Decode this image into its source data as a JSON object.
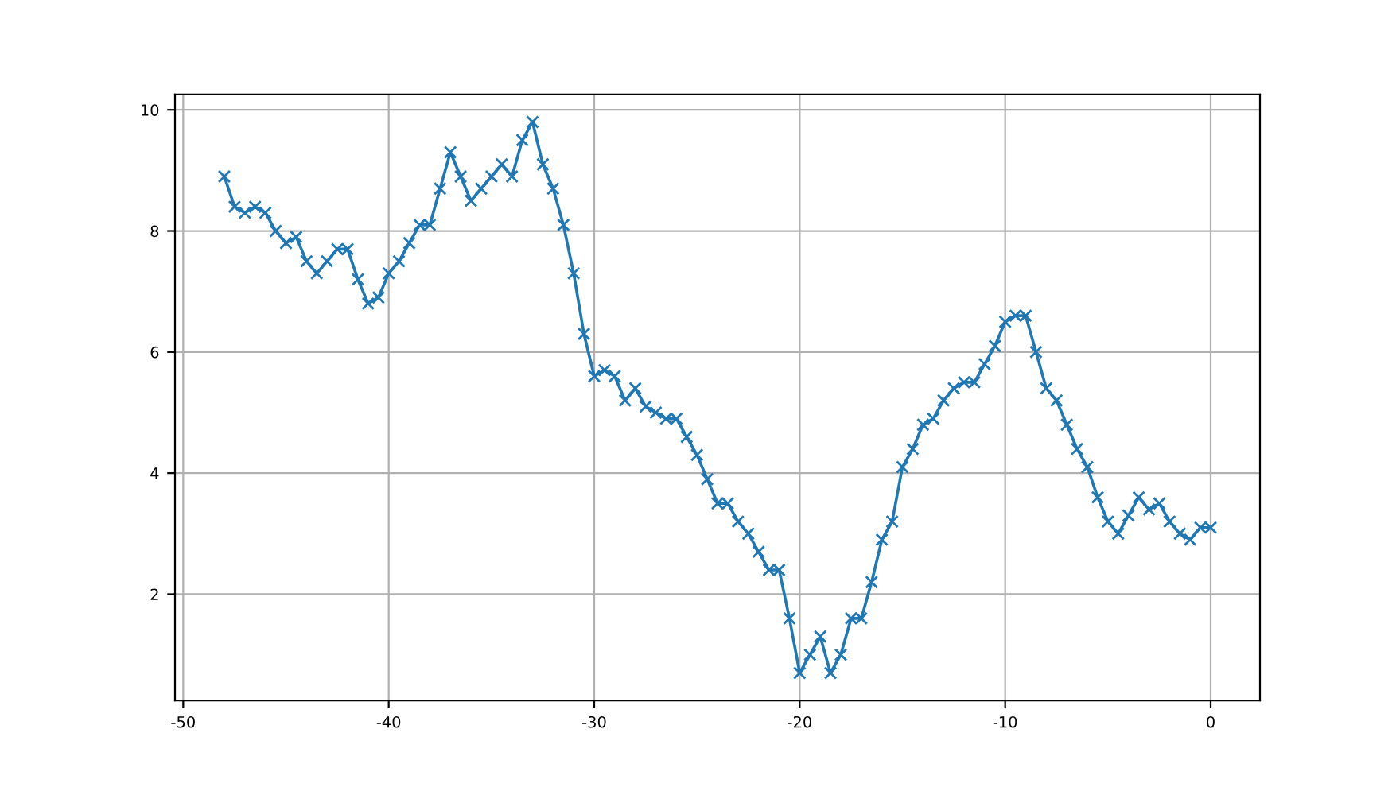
{
  "chart_data": {
    "type": "line",
    "marker": "cross",
    "line_style": "solid",
    "grid": true,
    "x": [
      -48,
      -47.5,
      -47,
      -46.5,
      -46,
      -45.5,
      -45,
      -44.5,
      -44,
      -43.5,
      -43,
      -42.5,
      -42,
      -41.5,
      -41,
      -40.5,
      -40,
      -39.5,
      -39,
      -38.5,
      -38,
      -37.5,
      -37,
      -36.5,
      -36,
      -35.5,
      -35,
      -34.5,
      -34,
      -33.5,
      -33,
      -32.5,
      -32,
      -31.5,
      -31,
      -30.5,
      -30,
      -29.5,
      -29,
      -28.5,
      -28,
      -27.5,
      -27,
      -26.5,
      -26,
      -25.5,
      -25,
      -24.5,
      -24,
      -23.5,
      -23,
      -22.5,
      -22,
      -21.5,
      -21,
      -20.5,
      -20,
      -19.5,
      -19,
      -18.5,
      -18,
      -17.5,
      -17,
      -16.5,
      -16,
      -15.5,
      -15,
      -14.5,
      -14,
      -13.5,
      -13,
      -12.5,
      -12,
      -11.5,
      -11,
      -10.5,
      -10,
      -9.5,
      -9,
      -8.5,
      -8,
      -7.5,
      -7,
      -6.5,
      -6,
      -5.5,
      -5,
      -4.5,
      -4,
      -3.5,
      -3,
      -2.5,
      -2,
      -1.5,
      -1,
      -0.5,
      0
    ],
    "series": [
      {
        "color": "#1f77b4",
        "values": [
          8.9,
          8.4,
          8.3,
          8.4,
          8.3,
          8.0,
          7.8,
          7.9,
          7.5,
          7.3,
          7.5,
          7.7,
          7.7,
          7.2,
          6.8,
          6.9,
          7.3,
          7.5,
          7.8,
          8.1,
          8.1,
          8.7,
          9.3,
          8.9,
          8.5,
          8.7,
          8.9,
          9.1,
          8.9,
          9.5,
          9.8,
          9.1,
          8.7,
          8.1,
          7.3,
          6.3,
          5.6,
          5.7,
          5.6,
          5.2,
          5.4,
          5.1,
          5.0,
          4.9,
          4.9,
          4.6,
          4.3,
          3.9,
          3.5,
          3.5,
          3.2,
          3.0,
          2.7,
          2.4,
          2.4,
          1.6,
          0.7,
          1.0,
          1.3,
          0.7,
          1.0,
          1.6,
          1.6,
          2.2,
          2.9,
          3.2,
          4.1,
          4.4,
          4.8,
          4.9,
          5.2,
          5.4,
          5.5,
          5.5,
          5.8,
          6.1,
          6.5,
          6.6,
          6.6,
          6.0,
          5.4,
          5.2,
          4.8,
          4.4,
          4.1,
          3.6,
          3.2,
          3.0,
          3.3,
          3.6,
          3.4,
          3.5,
          3.2,
          3.0,
          2.9,
          3.1,
          3.1
        ]
      }
    ],
    "xlim": [
      -50.4,
      2.4
    ],
    "xticks": [
      -50,
      -40,
      -30,
      -20,
      -10,
      0
    ],
    "ylim": [
      0.245,
      10.255
    ],
    "yticks": [
      2,
      4,
      6,
      8,
      10
    ]
  }
}
